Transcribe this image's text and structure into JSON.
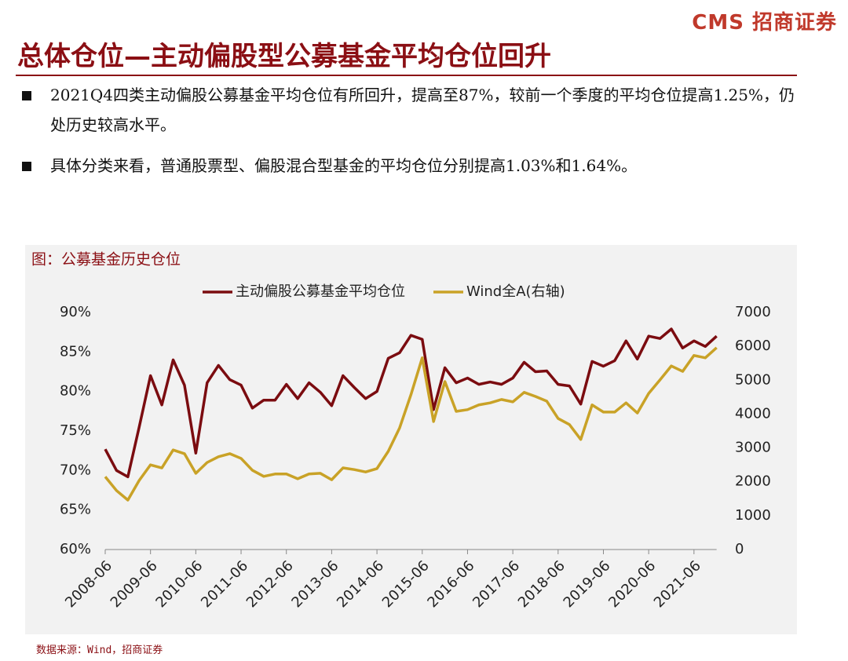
{
  "header": {
    "logo": "CMS 招商证券",
    "title": "总体仓位—主动偏股型公募基金平均仓位回升"
  },
  "bullets": [
    "2021Q4四类主动偏股公募基金平均仓位有所回升，提高至87%，较前一个季度的平均仓位提高1.25%，仍处历史较高水平。",
    "具体分类来看，普通股票型、偏股混合型基金的平均仓位分别提高1.03%和1.64%。"
  ],
  "source": "数据来源：Wind，招商证券",
  "chart_data": {
    "type": "line",
    "title": "图：公募基金历史仓位",
    "categories": [
      "2008-06",
      null,
      null,
      null,
      "2009-06",
      null,
      null,
      null,
      "2010-06",
      null,
      null,
      null,
      "2011-06",
      null,
      null,
      null,
      "2012-06",
      null,
      null,
      null,
      "2013-06",
      null,
      null,
      null,
      "2014-06",
      null,
      null,
      null,
      "2015-06",
      null,
      null,
      null,
      "2016-06",
      null,
      null,
      null,
      "2017-06",
      null,
      null,
      null,
      "2018-06",
      null,
      null,
      null,
      "2019-06",
      null,
      null,
      null,
      "2020-06",
      null,
      null,
      null,
      "2021-06",
      null,
      null
    ],
    "series": [
      {
        "name": "主动偏股公募基金平均仓位",
        "color": "#7b0c10",
        "values": [
          72.7,
          70.0,
          69.2,
          75.5,
          82.0,
          78.3,
          84.0,
          80.8,
          72.2,
          81.1,
          83.3,
          81.5,
          80.8,
          77.9,
          78.9,
          78.9,
          80.9,
          79.1,
          81.1,
          79.9,
          78.2,
          82.0,
          80.5,
          79.1,
          80.0,
          84.2,
          84.9,
          87.1,
          86.6,
          77.7,
          83.0,
          81.1,
          81.7,
          80.9,
          81.2,
          80.9,
          81.7,
          83.7,
          82.5,
          82.6,
          80.9,
          80.7,
          78.4,
          83.8,
          83.2,
          83.9,
          86.4,
          84.1,
          87.0,
          86.7,
          87.9,
          85.5,
          86.4,
          85.7,
          87.0
        ]
      },
      {
        "name": "Wind全A(右轴)",
        "color": "#c9a227",
        "axis": "y2",
        "values": [
          2150,
          1740,
          1460,
          2040,
          2500,
          2410,
          2940,
          2830,
          2250,
          2570,
          2740,
          2830,
          2690,
          2340,
          2160,
          2230,
          2230,
          2090,
          2230,
          2250,
          2060,
          2410,
          2360,
          2290,
          2390,
          2900,
          3590,
          4570,
          5660,
          3780,
          4960,
          4080,
          4130,
          4270,
          4330,
          4430,
          4360,
          4640,
          4520,
          4380,
          3870,
          3690,
          3250,
          4270,
          4060,
          4060,
          4330,
          4030,
          4610,
          5010,
          5420,
          5260,
          5730,
          5660,
          5960
        ]
      }
    ],
    "ylim": [
      60,
      90
    ],
    "yticks": [
      {
        "value": 60,
        "label": "60%"
      },
      {
        "value": 65,
        "label": "65%"
      },
      {
        "value": 70,
        "label": "70%"
      },
      {
        "value": 75,
        "label": "75%"
      },
      {
        "value": 80,
        "label": "80%"
      },
      {
        "value": 85,
        "label": "85%"
      },
      {
        "value": 90,
        "label": "90%"
      }
    ],
    "y2lim": [
      0,
      7000
    ],
    "y2ticks": [
      0,
      1000,
      2000,
      3000,
      4000,
      5000,
      6000,
      7000
    ],
    "legend": "top",
    "grid": false
  }
}
